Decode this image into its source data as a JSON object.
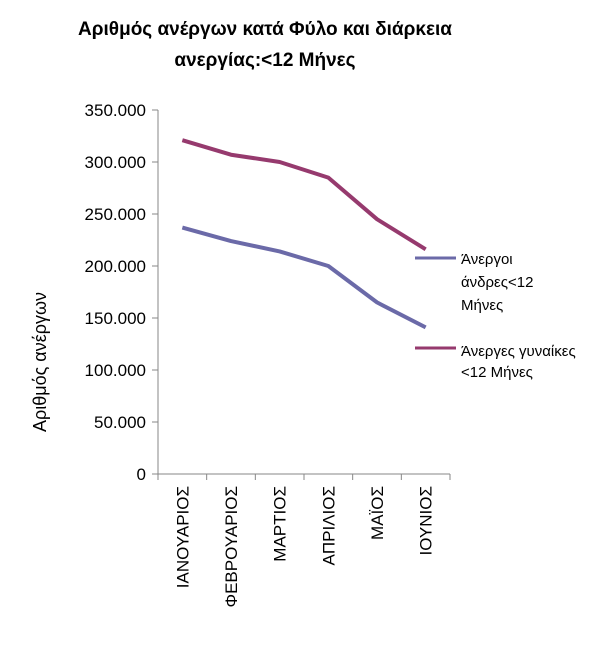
{
  "chart_data": {
    "type": "line",
    "title_line1": "Αριθμός ανέργων κατά Φύλο και διάρκεια",
    "title_line2": "ανεργίας:<12 Μήνες",
    "xlabel": "",
    "ylabel": "Αριθμός ανέργων",
    "categories": [
      "ΙΑΝΟΥΑΡΙΟΣ",
      "ΦΕΒΡΟΥΑΡΙΟΣ",
      "ΜΑΡΤΙΟΣ",
      "ΑΠΡΙΛΙΟΣ",
      "ΜΑΪΟΣ",
      "ΙΟΥΝΙΟΣ"
    ],
    "ylim": [
      0,
      350000
    ],
    "yticks": [
      0,
      50000,
      100000,
      150000,
      200000,
      250000,
      300000,
      350000
    ],
    "ytick_labels": [
      "0",
      "50.000",
      "100.000",
      "150.000",
      "200.000",
      "250.000",
      "300.000",
      "350.000"
    ],
    "grid": false,
    "legend_position": "right",
    "series": [
      {
        "name": "Άνεργοι άνδρες<12 Μήνες",
        "legend_lines": [
          "Άνεργοι",
          "άνδρες<12",
          "Μήνες"
        ],
        "color": "#6b6aa8",
        "values": [
          237000,
          224000,
          214000,
          200000,
          165000,
          141000
        ]
      },
      {
        "name": "Άνεργες γυναίκες <12 Μήνες",
        "legend_lines": [
          "Άνεργες γυναίκες",
          "<12 Μήνες"
        ],
        "color": "#963a6e",
        "values": [
          321000,
          307000,
          300000,
          285000,
          245000,
          216000
        ]
      }
    ]
  }
}
